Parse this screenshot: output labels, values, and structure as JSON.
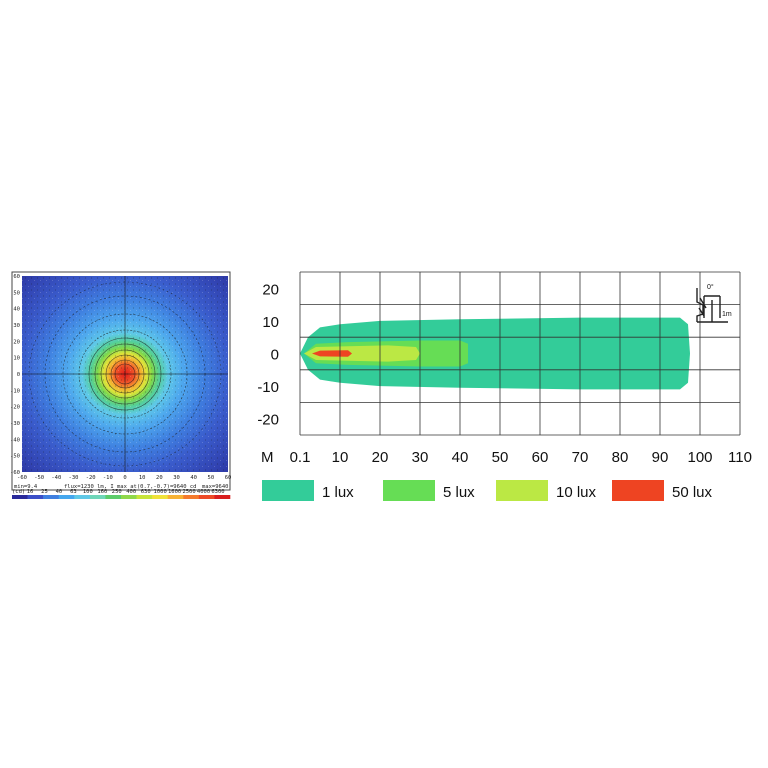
{
  "chart_data": [
    {
      "type": "heatmap",
      "title": "",
      "x_ticks": [
        "-60",
        "-50",
        "-40",
        "-30",
        "-20",
        "-10",
        "0",
        "10",
        "20",
        "30",
        "40",
        "50",
        "60"
      ],
      "y_ticks": [
        "60",
        "50",
        "40",
        "30",
        "20",
        "10",
        "0",
        "-10",
        "-20",
        "-30",
        "-40",
        "-50",
        "-60"
      ],
      "range_x": [
        -60,
        60
      ],
      "range_y": [
        -60,
        60
      ],
      "peak": [
        0,
        0
      ],
      "footer_min": "min=9.4",
      "footer_info": "flux=1230 lm, I max at(0.7,-0.7)=9640 cd",
      "footer_max": "max=9640",
      "scale_label": "(cd)",
      "scale_ticks": [
        "16",
        "25",
        "40",
        "63",
        "100",
        "160",
        "250",
        "400",
        "630",
        "1000",
        "1600",
        "2500",
        "4000",
        "6300"
      ],
      "scale_colors": [
        "#2a2a9a",
        "#3b4fc8",
        "#3f7fe0",
        "#45a7ee",
        "#5fc8e6",
        "#6fd6b8",
        "#5ccc6a",
        "#8fd84a",
        "#c7e43a",
        "#f0e23a",
        "#f7b234",
        "#f57a2c",
        "#ee4a26",
        "#d91e1e"
      ]
    },
    {
      "type": "area",
      "xlabel": "M",
      "x_ticks": [
        "0.1",
        "10",
        "20",
        "30",
        "40",
        "50",
        "60",
        "70",
        "80",
        "90",
        "100",
        "110"
      ],
      "xlim": [
        0,
        110
      ],
      "y_ticks": [
        "20",
        "10",
        "0",
        "-10",
        "-20"
      ],
      "ylim": [
        -25,
        25
      ],
      "grid": true,
      "series": [
        {
          "name": "1 lux",
          "color": "#33cc99",
          "outline": [
            [
              0,
              0
            ],
            [
              2,
              5
            ],
            [
              5,
              8
            ],
            [
              10,
              9
            ],
            [
              20,
              10
            ],
            [
              40,
              10.5
            ],
            [
              70,
              11
            ],
            [
              95,
              11
            ],
            [
              97,
              9
            ],
            [
              97.5,
              0
            ],
            [
              97,
              -9
            ],
            [
              95,
              -11
            ],
            [
              70,
              -11
            ],
            [
              40,
              -10.5
            ],
            [
              20,
              -10
            ],
            [
              10,
              -9
            ],
            [
              5,
              -8
            ],
            [
              2,
              -5
            ]
          ]
        },
        {
          "name": "5 lux",
          "color": "#66dd55",
          "outline": [
            [
              1,
              0
            ],
            [
              4,
              3
            ],
            [
              12,
              3.5
            ],
            [
              30,
              4
            ],
            [
              40,
              4
            ],
            [
              42,
              3
            ],
            [
              42,
              -3
            ],
            [
              40,
              -4
            ],
            [
              30,
              -4
            ],
            [
              12,
              -3.5
            ],
            [
              4,
              -3
            ]
          ]
        },
        {
          "name": "10 lux",
          "color": "#bbe844",
          "outline": [
            [
              1,
              0
            ],
            [
              4,
              2
            ],
            [
              12,
              2.2
            ],
            [
              22,
              2.5
            ],
            [
              29,
              2
            ],
            [
              30,
              0
            ],
            [
              29,
              -2
            ],
            [
              22,
              -2.5
            ],
            [
              12,
              -2.2
            ],
            [
              4,
              -2
            ]
          ]
        },
        {
          "name": "50 lux",
          "color": "#ee4422",
          "outline": [
            [
              3,
              0
            ],
            [
              5,
              0.9
            ],
            [
              12,
              1
            ],
            [
              13,
              0
            ],
            [
              12,
              -1
            ],
            [
              5,
              -0.9
            ]
          ]
        }
      ],
      "legend": [
        "1 lux",
        "5 lux",
        "10 lux",
        "50 lux"
      ],
      "legend_colors": [
        "#33cc99",
        "#66dd55",
        "#bbe844",
        "#ee4422"
      ],
      "legend_position": "bottom",
      "inset_angle": "0°",
      "inset_height": "1m"
    }
  ]
}
